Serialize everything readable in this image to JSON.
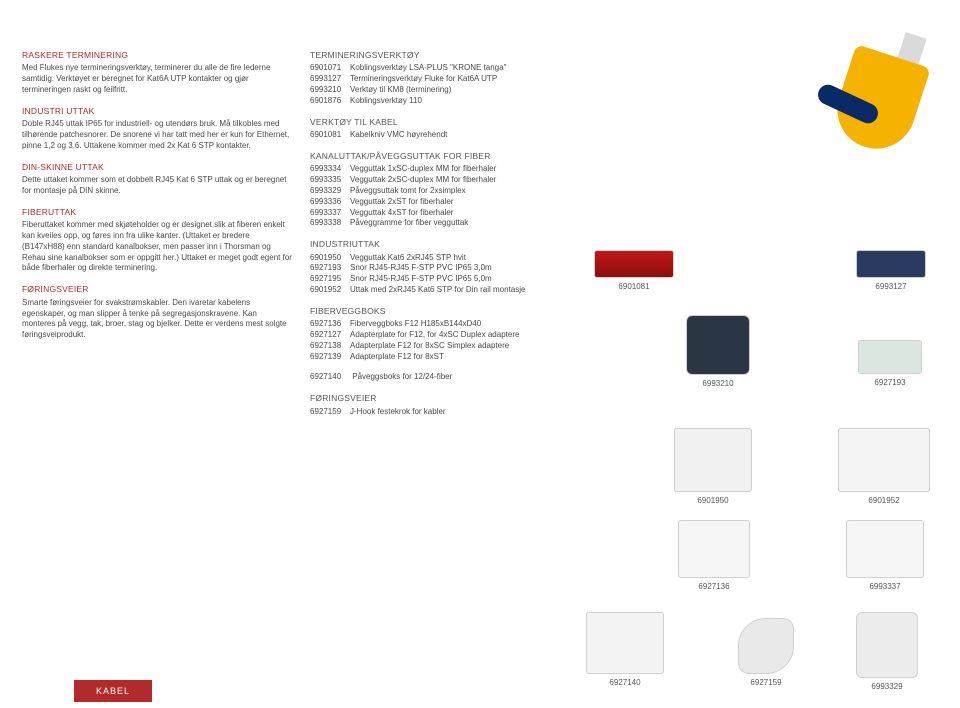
{
  "tab_label": "KABEL",
  "left": {
    "s1_title": "RASKERE TERMINERING",
    "s1_body": "Med Flukes nye termineringsverktøy, terminerer du alle de fire lederne samtidig. Verktøyet er beregnet for Kat6A UTP kontakter og gjør termineringen raskt og feilfritt.",
    "s2_title": "INDUSTRI UTTAK",
    "s2_body": "Doble RJ45 uttak IP65 for industriell- og utendørs bruk. Må tilkobles med tilhørende patchesnorer. De snorene vi har tatt med her er kun for Ethernet, pinne 1,2 og 3,6. Uttakene kommer med 2x Kat 6 STP kontakter.",
    "s3_title": "DIN-SKINNE UTTAK",
    "s3_body": "Dette uttaket kommer som et dobbelt RJ45 Kat 6 STP uttak og er beregnet for montasje på DIN skinne.",
    "s4_title": "FIBERUTTAK",
    "s4_body": "Fiberuttaket kommer med skjøteholder og er designet slik at fiberen enkelt kan kveiles opp, og føres inn fra ulike kanter. (Uttaket er bredere (B147xH88) enn standard kanalbokser, men passer inn i Thorsman og Rehau sine kanalbokser som er oppgitt her.) Uttaket er meget godt egent for både fiberhaler og direkte terminering.",
    "s5_title": "FØRINGSVEIER",
    "s5_body": "Smarte føringsveier for svakstrømskabler. Den ivaretar kabelens egenskaper, og man slipper å tenke på segregasjonskravene. Kan monteres på vegg, tak, broer, stag og bjelker. Dette er verdens mest solgte føringsveiprodukt."
  },
  "mid": {
    "g1_title": "TERMINERINGSVERKTØY",
    "g1_items": [
      {
        "num": "6901071",
        "txt": "Koblingsverktøy LSA-PLUS \"KRONE tanga\""
      },
      {
        "num": "6993127",
        "txt": "Termineringsverktøy Fluke for Kat6A UTP"
      },
      {
        "num": "6993210",
        "txt": "Verktøy til KM8 (terminering)"
      },
      {
        "num": "6901876",
        "txt": "Koblingsverktøy 110"
      }
    ],
    "g2_title": "VERKTØY TIL KABEL",
    "g2_items": [
      {
        "num": "6901081",
        "txt": "Kabelkniv VMC høyrehendt"
      }
    ],
    "g3_title": "KANALUTTAK/PÅVEGGSUTTAK FOR FIBER",
    "g3_items": [
      {
        "num": "6993334",
        "txt": "Vegguttak 1xSC-duplex MM for fiberhaler"
      },
      {
        "num": "6993335",
        "txt": "Vegguttak 2xSC-duplex MM for fiberhaler"
      },
      {
        "num": "6993329",
        "txt": "Påveggsuttak tomt for 2xsimplex"
      },
      {
        "num": "6993336",
        "txt": "Vegguttak 2xST for fiberhaler"
      },
      {
        "num": "6993337",
        "txt": "Vegguttak 4xST for fiberhaler"
      },
      {
        "num": "6993338",
        "txt": "Påveggramme for fiber vegguttak"
      }
    ],
    "g4_title": "INDUSTRIUTTAK",
    "g4_items": [
      {
        "num": "6901950",
        "txt": "Vegguttak Kat6 2xRJ45 STP hvit"
      },
      {
        "num": "6927193",
        "txt": "Snor RJ45-RJ45 F-STP PVC IP65 3,0m"
      },
      {
        "num": "6927195",
        "txt": "Snor RJ45-RJ45 F-STP PVC IP65 5,0m"
      },
      {
        "num": "6901952",
        "txt": "Uttak med 2xRJ45 Kat6 STP for Din rail montasje"
      }
    ],
    "g5_title": "FIBERVEGGBOKS",
    "g5_items": [
      {
        "num": "6927136",
        "txt": "Fiberveggboks F12 H185xB144xD40"
      },
      {
        "num": "6927127",
        "txt": "Adapterplate for F12, for 4xSC Duplex adaptere"
      },
      {
        "num": "6927138",
        "txt": "Adapterplate F12 for 8xSC Simplex adaptere"
      },
      {
        "num": "6927139",
        "txt": "Adapterplate F12 for 8xST"
      }
    ],
    "g6_line": {
      "num": "6927140",
      "txt": "Påveggsboks for 12/24-fiber"
    },
    "g7_title": "FØRINGSVEIER",
    "g7_items": [
      {
        "num": "6927159",
        "txt": "J-Hook festekrok for kabler"
      }
    ]
  },
  "tiles": {
    "t1": "6901081",
    "t2": "6993127",
    "t3": "6993210",
    "t4": "6927193",
    "t5": "6901950",
    "t6": "6901952",
    "t7": "6927136",
    "t8": "6993337",
    "t9": "6927140",
    "t10": "6927159",
    "t11": "6993329"
  }
}
